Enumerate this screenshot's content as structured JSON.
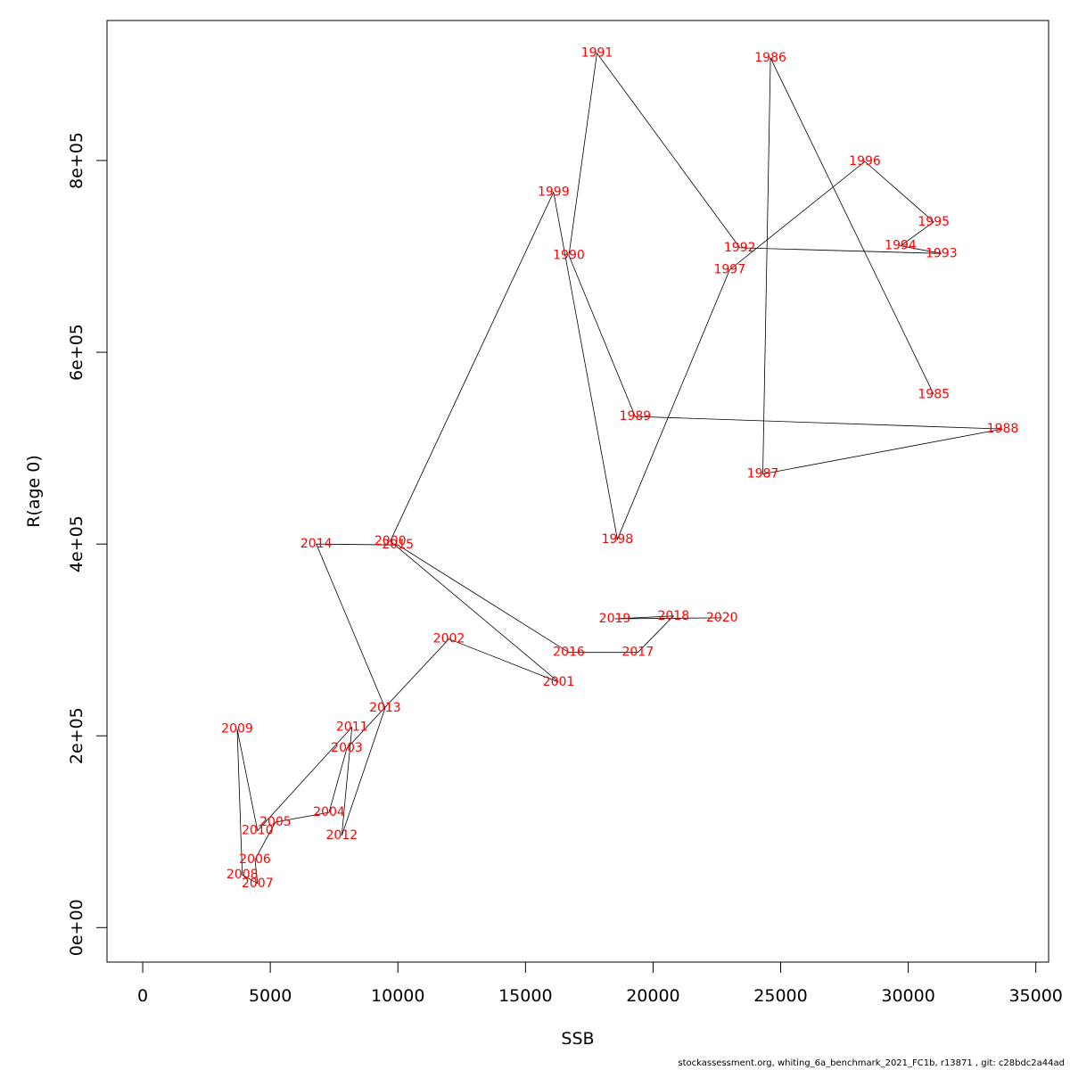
{
  "chart_data": {
    "type": "scatter",
    "xlabel": "SSB",
    "ylabel": "R(age 0)",
    "xlim": [
      -1400,
      35500
    ],
    "ylim": [
      -36000,
      946000
    ],
    "x_ticks": [
      0,
      5000,
      10000,
      15000,
      20000,
      25000,
      30000,
      35000
    ],
    "x_tick_labels": [
      "0",
      "5000",
      "10000",
      "15000",
      "20000",
      "25000",
      "30000",
      "35000"
    ],
    "y_ticks": [
      0,
      200000,
      400000,
      600000,
      800000
    ],
    "y_tick_labels": [
      "0e+00",
      "2e+05",
      "4e+05",
      "6e+05",
      "8e+05"
    ],
    "line_color": "#000000",
    "label_color": "#ff0000",
    "points": [
      {
        "label": "1985",
        "x": 31000,
        "y": 556000
      },
      {
        "label": "1986",
        "x": 24600,
        "y": 907000
      },
      {
        "label": "1987",
        "x": 24300,
        "y": 473000
      },
      {
        "label": "1988",
        "x": 33700,
        "y": 520000
      },
      {
        "label": "1989",
        "x": 19300,
        "y": 533000
      },
      {
        "label": "1990",
        "x": 16700,
        "y": 701000
      },
      {
        "label": "1991",
        "x": 17800,
        "y": 912000
      },
      {
        "label": "1992",
        "x": 23400,
        "y": 709000
      },
      {
        "label": "1993",
        "x": 31300,
        "y": 703000
      },
      {
        "label": "1994",
        "x": 29700,
        "y": 711000
      },
      {
        "label": "1995",
        "x": 31000,
        "y": 736000
      },
      {
        "label": "1996",
        "x": 28300,
        "y": 799000
      },
      {
        "label": "1997",
        "x": 23000,
        "y": 686000
      },
      {
        "label": "1998",
        "x": 18600,
        "y": 405000
      },
      {
        "label": "1999",
        "x": 16100,
        "y": 767000
      },
      {
        "label": "2000",
        "x": 9700,
        "y": 403000
      },
      {
        "label": "2001",
        "x": 16300,
        "y": 256000
      },
      {
        "label": "2002",
        "x": 12000,
        "y": 301000
      },
      {
        "label": "2003",
        "x": 8000,
        "y": 187000
      },
      {
        "label": "2004",
        "x": 7300,
        "y": 120000
      },
      {
        "label": "2005",
        "x": 5200,
        "y": 110000
      },
      {
        "label": "2006",
        "x": 4400,
        "y": 71000
      },
      {
        "label": "2007",
        "x": 4500,
        "y": 46000
      },
      {
        "label": "2008",
        "x": 3900,
        "y": 55000
      },
      {
        "label": "2009",
        "x": 3700,
        "y": 207000
      },
      {
        "label": "2010",
        "x": 4500,
        "y": 101000
      },
      {
        "label": "2011",
        "x": 8200,
        "y": 209000
      },
      {
        "label": "2012",
        "x": 7800,
        "y": 96000
      },
      {
        "label": "2013",
        "x": 9500,
        "y": 229000
      },
      {
        "label": "2014",
        "x": 6800,
        "y": 400000
      },
      {
        "label": "2015",
        "x": 10000,
        "y": 399000
      },
      {
        "label": "2016",
        "x": 16700,
        "y": 287000
      },
      {
        "label": "2017",
        "x": 19400,
        "y": 287000
      },
      {
        "label": "2018",
        "x": 20800,
        "y": 325000
      },
      {
        "label": "2019",
        "x": 18500,
        "y": 322000
      },
      {
        "label": "2020",
        "x": 22700,
        "y": 323000
      }
    ]
  },
  "footer": {
    "text": "stockassessment.org, whiting_6a_benchmark_2021_FC1b, r13871 , git: c28bdc2a44ad"
  }
}
